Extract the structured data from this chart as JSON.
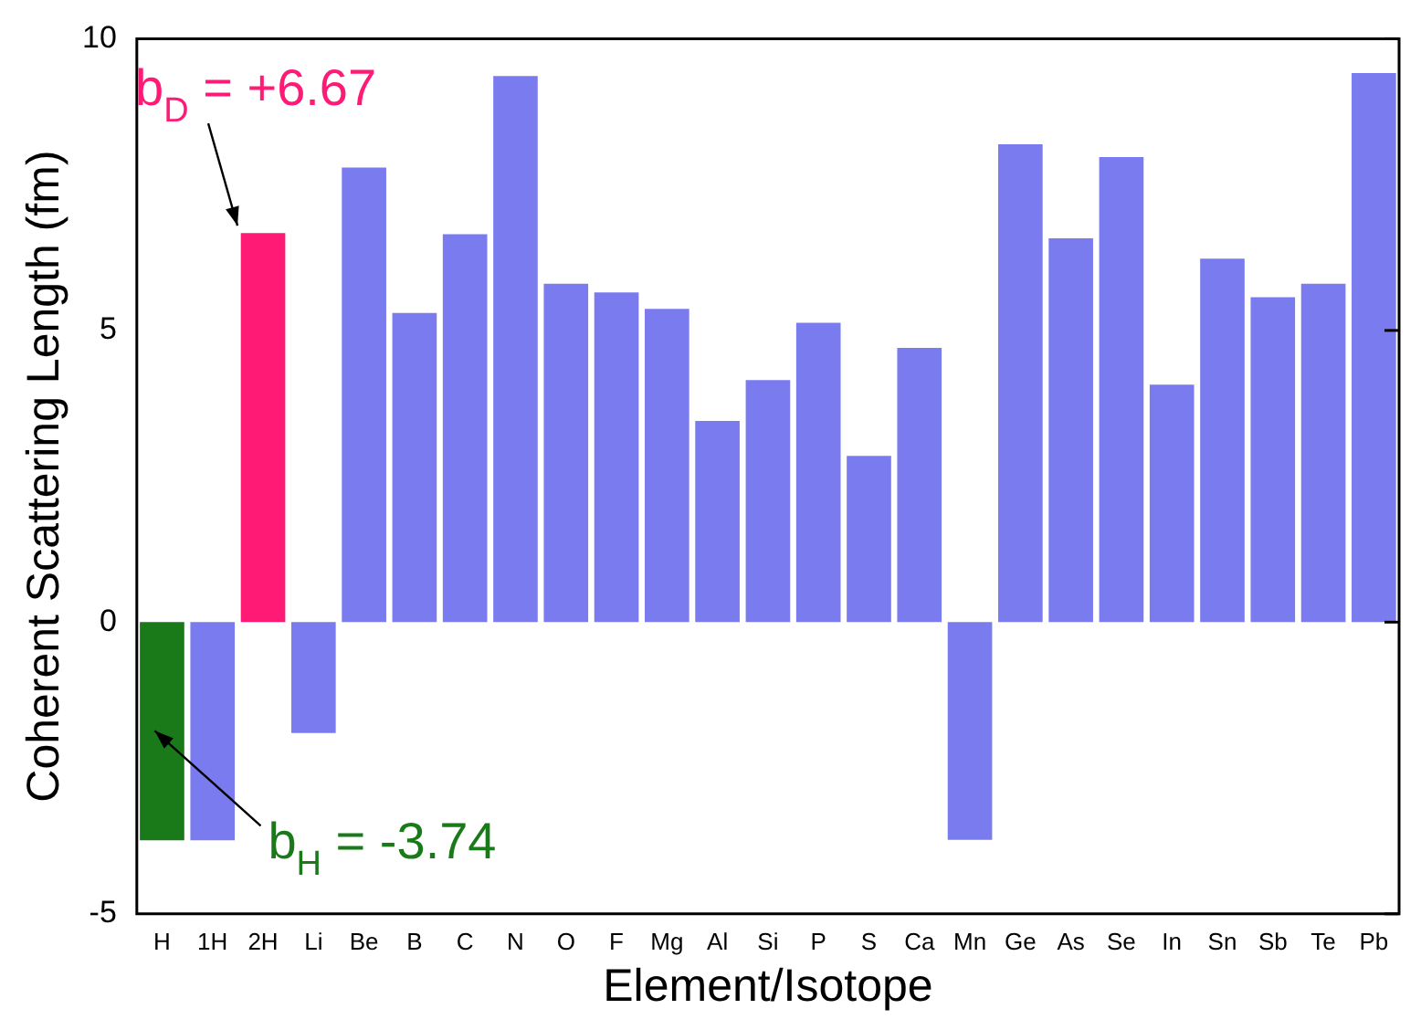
{
  "chart_data": {
    "type": "bar",
    "xlabel": "Element/Isotope",
    "ylabel": "Coherent Scattering Length (fm)",
    "categories": [
      "H",
      "1H",
      "2H",
      "Li",
      "Be",
      "B",
      "C",
      "N",
      "O",
      "F",
      "Mg",
      "Al",
      "Si",
      "P",
      "S",
      "Ca",
      "Mn",
      "Ge",
      "As",
      "Se",
      "In",
      "Sn",
      "Sb",
      "Te",
      "Pb"
    ],
    "values": [
      -3.74,
      -3.74,
      6.67,
      -1.9,
      7.79,
      5.3,
      6.65,
      9.36,
      5.8,
      5.65,
      5.37,
      3.45,
      4.15,
      5.13,
      2.85,
      4.7,
      -3.73,
      8.19,
      6.58,
      7.97,
      4.07,
      6.23,
      5.57,
      5.8,
      9.41
    ],
    "colors": [
      "#1a7a1a",
      "#7b7bf0",
      "#ff1a75",
      "#7b7bf0",
      "#7b7bf0",
      "#7b7bf0",
      "#7b7bf0",
      "#7b7bf0",
      "#7b7bf0",
      "#7b7bf0",
      "#7b7bf0",
      "#7b7bf0",
      "#7b7bf0",
      "#7b7bf0",
      "#7b7bf0",
      "#7b7bf0",
      "#7b7bf0",
      "#7b7bf0",
      "#7b7bf0",
      "#7b7bf0",
      "#7b7bf0",
      "#7b7bf0",
      "#7b7bf0",
      "#7b7bf0",
      "#7b7bf0"
    ],
    "ylim": [
      -5,
      10
    ],
    "yticks": [
      -5,
      0,
      5,
      10
    ],
    "grid": false,
    "legend": false,
    "annotations": [
      {
        "text": "b$_{D}$ = +6.67",
        "x": "2H",
        "y": 6.67
      },
      {
        "text": "b$_{H}$ = -3.74",
        "x": "H",
        "y": -3.74
      }
    ]
  }
}
